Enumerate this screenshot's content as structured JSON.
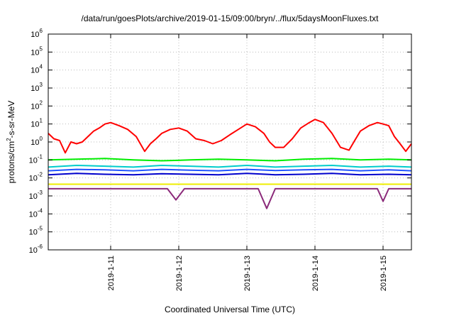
{
  "chart_data": {
    "type": "line",
    "title": "/data/run/goesPlots/archive/2019-01-15/09:00/bryn/../flux/5daysMoonFluxes.txt",
    "xlabel": "Coordinated Universal Time (UTC)",
    "ylabel": "protons/cm²-s-sr-MeV",
    "ylabel_parts": {
      "base": "protons/cm",
      "sup": "2",
      "rest": "-s-sr-MeV"
    },
    "yscale": "log",
    "ylim": [
      1e-06,
      1000000.0
    ],
    "xlim": [
      "2019-01-10 02:00",
      "2019-01-15 10:00"
    ],
    "grid": true,
    "x_ticks": [
      "2019-1-11",
      "2019-1-12",
      "2019-1-13",
      "2019-1-14",
      "2019-1-15"
    ],
    "x_tick_values": [
      "2019-01-11 00:00",
      "2019-01-12 00:00",
      "2019-01-13 00:00",
      "2019-01-14 00:00",
      "2019-01-15 00:00"
    ],
    "y_ticks": [
      {
        "base": "10",
        "exp": "-6"
      },
      {
        "base": "10",
        "exp": "-5"
      },
      {
        "base": "10",
        "exp": "-4"
      },
      {
        "base": "10",
        "exp": "-3"
      },
      {
        "base": "10",
        "exp": "-2"
      },
      {
        "base": "10",
        "exp": "-1"
      },
      {
        "base": "10",
        "exp": "0"
      },
      {
        "base": "10",
        "exp": "1"
      },
      {
        "base": "10",
        "exp": "2"
      },
      {
        "base": "10",
        "exp": "3"
      },
      {
        "base": "10",
        "exp": "4"
      },
      {
        "base": "10",
        "exp": "5"
      },
      {
        "base": "10",
        "exp": "6"
      }
    ],
    "series": [
      {
        "color": "#ff0000",
        "x": [
          "2019-01-10 02:00",
          "2019-01-10 04:00",
          "2019-01-10 06:00",
          "2019-01-10 08:00",
          "2019-01-10 10:00",
          "2019-01-10 12:00",
          "2019-01-10 14:00",
          "2019-01-10 16:00",
          "2019-01-10 18:00",
          "2019-01-10 20:00",
          "2019-01-10 22:00",
          "2019-01-11 00:00",
          "2019-01-11 03:00",
          "2019-01-11 06:00",
          "2019-01-11 09:00",
          "2019-01-11 12:00",
          "2019-01-11 14:00",
          "2019-01-11 16:00",
          "2019-01-11 18:00",
          "2019-01-11 21:00",
          "2019-01-12 00:00",
          "2019-01-12 03:00",
          "2019-01-12 06:00",
          "2019-01-12 09:00",
          "2019-01-12 12:00",
          "2019-01-12 15:00",
          "2019-01-12 18:00",
          "2019-01-12 21:00",
          "2019-01-13 00:00",
          "2019-01-13 03:00",
          "2019-01-13 06:00",
          "2019-01-13 08:00",
          "2019-01-13 10:00",
          "2019-01-13 13:00",
          "2019-01-13 16:00",
          "2019-01-13 19:00",
          "2019-01-13 22:00",
          "2019-01-14 00:00",
          "2019-01-14 03:00",
          "2019-01-14 06:00",
          "2019-01-14 09:00",
          "2019-01-14 12:00",
          "2019-01-14 14:00",
          "2019-01-14 16:00",
          "2019-01-14 19:00",
          "2019-01-14 22:00",
          "2019-01-15 00:00",
          "2019-01-15 02:00",
          "2019-01-15 04:00",
          "2019-01-15 06:00",
          "2019-01-15 08:00",
          "2019-01-15 10:00"
        ],
        "y": [
          3.0,
          1.5,
          1.2,
          0.25,
          1.0,
          0.8,
          1.0,
          2.0,
          4.0,
          6.0,
          10,
          12,
          8,
          5,
          2,
          0.3,
          0.8,
          1.5,
          3,
          5,
          6,
          4,
          1.5,
          1.2,
          0.8,
          1.2,
          2.5,
          5,
          10,
          7,
          3,
          1.0,
          0.5,
          0.5,
          1.5,
          6,
          12,
          18,
          12,
          3,
          0.5,
          0.35,
          1.2,
          4,
          8,
          12,
          10,
          8,
          2,
          0.8,
          0.3,
          0.8
        ]
      },
      {
        "color": "#00ee00",
        "x": [
          "2019-01-10 02:00",
          "2019-01-10 12:00",
          "2019-01-10 22:00",
          "2019-01-11 08:00",
          "2019-01-11 18:00",
          "2019-01-12 04:00",
          "2019-01-12 14:00",
          "2019-01-13 00:00",
          "2019-01-13 10:00",
          "2019-01-13 20:00",
          "2019-01-14 06:00",
          "2019-01-14 16:00",
          "2019-01-15 02:00",
          "2019-01-15 10:00"
        ],
        "y": [
          0.1,
          0.11,
          0.12,
          0.1,
          0.09,
          0.1,
          0.11,
          0.1,
          0.09,
          0.11,
          0.12,
          0.1,
          0.11,
          0.1
        ]
      },
      {
        "color": "#00cccc",
        "x": [
          "2019-01-10 02:00",
          "2019-01-10 12:00",
          "2019-01-10 22:00",
          "2019-01-11 08:00",
          "2019-01-11 18:00",
          "2019-01-12 04:00",
          "2019-01-12 14:00",
          "2019-01-13 00:00",
          "2019-01-13 10:00",
          "2019-01-13 20:00",
          "2019-01-14 06:00",
          "2019-01-14 16:00",
          "2019-01-15 02:00",
          "2019-01-15 10:00"
        ],
        "y": [
          0.04,
          0.05,
          0.045,
          0.04,
          0.05,
          0.045,
          0.04,
          0.05,
          0.04,
          0.045,
          0.05,
          0.04,
          0.045,
          0.04
        ]
      },
      {
        "color": "#2255ff",
        "x": [
          "2019-01-10 02:00",
          "2019-01-10 12:00",
          "2019-01-10 22:00",
          "2019-01-11 08:00",
          "2019-01-11 18:00",
          "2019-01-12 04:00",
          "2019-01-12 14:00",
          "2019-01-13 00:00",
          "2019-01-13 10:00",
          "2019-01-13 20:00",
          "2019-01-14 06:00",
          "2019-01-14 16:00",
          "2019-01-15 02:00",
          "2019-01-15 10:00"
        ],
        "y": [
          0.025,
          0.03,
          0.028,
          0.025,
          0.03,
          0.027,
          0.025,
          0.03,
          0.026,
          0.028,
          0.03,
          0.025,
          0.028,
          0.025
        ]
      },
      {
        "color": "#0000cc",
        "x": [
          "2019-01-10 02:00",
          "2019-01-10 12:00",
          "2019-01-10 22:00",
          "2019-01-11 08:00",
          "2019-01-11 18:00",
          "2019-01-12 04:00",
          "2019-01-12 14:00",
          "2019-01-13 00:00",
          "2019-01-13 10:00",
          "2019-01-13 20:00",
          "2019-01-14 06:00",
          "2019-01-14 16:00",
          "2019-01-15 02:00",
          "2019-01-15 10:00"
        ],
        "y": [
          0.015,
          0.018,
          0.016,
          0.015,
          0.017,
          0.016,
          0.015,
          0.018,
          0.015,
          0.016,
          0.018,
          0.015,
          0.016,
          0.015
        ]
      },
      {
        "color": "#eeee00",
        "x": [
          "2019-01-10 02:00",
          "2019-01-10 12:00",
          "2019-01-10 22:00",
          "2019-01-11 08:00",
          "2019-01-11 18:00",
          "2019-01-12 04:00",
          "2019-01-12 14:00",
          "2019-01-13 00:00",
          "2019-01-13 10:00",
          "2019-01-13 20:00",
          "2019-01-14 06:00",
          "2019-01-14 16:00",
          "2019-01-15 02:00",
          "2019-01-15 10:00"
        ],
        "y": [
          0.0045,
          0.0045,
          0.0045,
          0.0045,
          0.0045,
          0.0045,
          0.0045,
          0.0045,
          0.0045,
          0.0045,
          0.0045,
          0.0045,
          0.0045,
          0.0045
        ]
      },
      {
        "color": "#8b2a7a",
        "x": [
          "2019-01-10 02:00",
          "2019-01-10 12:00",
          "2019-01-10 22:00",
          "2019-01-11 08:00",
          "2019-01-11 20:00",
          "2019-01-11 23:00",
          "2019-01-12 02:00",
          "2019-01-12 14:00",
          "2019-01-13 04:00",
          "2019-01-13 07:00",
          "2019-01-13 10:00",
          "2019-01-13 22:00",
          "2019-01-14 12:00",
          "2019-01-14 22:00",
          "2019-01-15 00:00",
          "2019-01-15 02:00",
          "2019-01-15 10:00"
        ],
        "y": [
          0.0025,
          0.0025,
          0.0025,
          0.0025,
          0.0025,
          0.0006,
          0.0025,
          0.0025,
          0.0025,
          0.0002,
          0.0025,
          0.0025,
          0.0025,
          0.0025,
          0.0005,
          0.0025,
          0.0025
        ]
      }
    ]
  }
}
